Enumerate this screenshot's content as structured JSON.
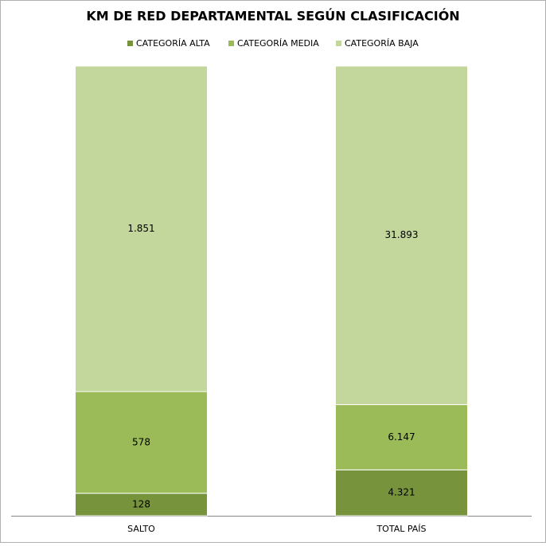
{
  "chart_data": {
    "type": "bar",
    "stacked": "percent",
    "title": "KM DE RED DEPARTAMENTAL SEGÚN CLASIFICACIÓN",
    "categories": [
      "SALTO",
      "TOTAL PAÍS"
    ],
    "series": [
      {
        "name": "CATEGORÍA ALTA",
        "color": "#77933c",
        "values": [
          128,
          4321
        ],
        "value_labels": [
          "128",
          "4.321"
        ]
      },
      {
        "name": "CATEGORÍA MEDIA",
        "color": "#9bbb59",
        "values": [
          578,
          6147
        ],
        "value_labels": [
          "578",
          "6.147"
        ]
      },
      {
        "name": "CATEGORÍA BAJA",
        "color": "#c3d69b",
        "values": [
          1851,
          31893
        ],
        "value_labels": [
          "1.851",
          "31.893"
        ]
      }
    ],
    "legend": "top"
  }
}
